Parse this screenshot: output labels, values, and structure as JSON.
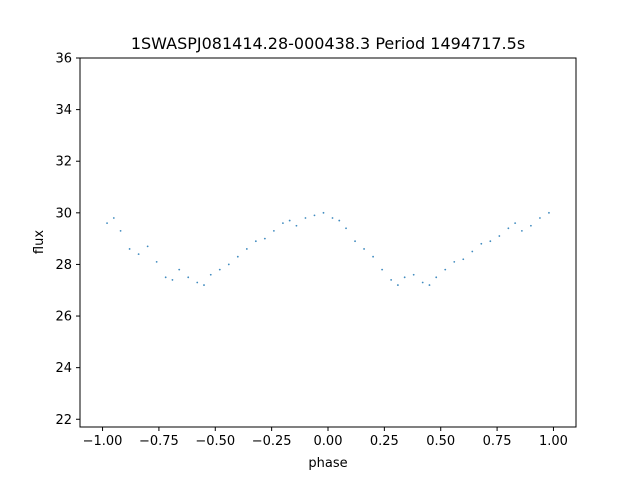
{
  "chart_data": {
    "type": "scatter",
    "title": "1SWASPJ081414.28-000438.3 Period 1494717.5s",
    "xlabel": "phase",
    "ylabel": "flux",
    "xlim": [
      -1.1,
      1.1
    ],
    "ylim": [
      21.7,
      36.0
    ],
    "x_ticks": [
      -1.0,
      -0.75,
      -0.5,
      -0.25,
      0.0,
      0.25,
      0.5,
      0.75,
      1.0
    ],
    "x_tick_labels": [
      "−1.00",
      "−0.75",
      "−0.50",
      "−0.25",
      "0.00",
      "0.25",
      "0.50",
      "0.75",
      "1.00"
    ],
    "y_ticks": [
      22,
      24,
      26,
      28,
      30,
      32,
      34,
      36
    ],
    "y_tick_labels": [
      "22",
      "24",
      "26",
      "28",
      "30",
      "32",
      "34",
      "36"
    ],
    "grid": false,
    "legend": "none",
    "point_color": "#1f77b4",
    "series": [
      {
        "x": [
          -0.98,
          -0.95,
          -0.92,
          -0.88,
          -0.84,
          -0.8,
          -0.76,
          -0.72,
          -0.69,
          -0.66,
          -0.62,
          -0.58,
          -0.55,
          -0.52,
          -0.48,
          -0.44,
          -0.4,
          -0.36,
          -0.32,
          -0.28,
          -0.24,
          -0.2,
          -0.17,
          -0.14,
          -0.1,
          -0.06,
          -0.02,
          0.02,
          0.05,
          0.08,
          0.12,
          0.16,
          0.2,
          0.24,
          0.28,
          0.31,
          0.34,
          0.38,
          0.42,
          0.45,
          0.48,
          0.52,
          0.56,
          0.6,
          0.64,
          0.68,
          0.72,
          0.76,
          0.8,
          0.83,
          0.86,
          0.9,
          0.94,
          0.98
        ],
        "y": [
          29.6,
          29.8,
          29.3,
          28.6,
          28.4,
          28.7,
          28.1,
          27.5,
          27.4,
          27.8,
          27.5,
          27.3,
          27.2,
          27.6,
          27.8,
          28.0,
          28.3,
          28.6,
          28.9,
          29.0,
          29.3,
          29.6,
          29.7,
          29.5,
          29.8,
          29.9,
          30.0,
          29.8,
          29.7,
          29.4,
          28.9,
          28.6,
          28.3,
          27.8,
          27.4,
          27.2,
          27.5,
          27.6,
          27.3,
          27.2,
          27.5,
          27.8,
          28.1,
          28.2,
          28.5,
          28.8,
          28.9,
          29.1,
          29.4,
          29.6,
          29.3,
          29.5,
          29.8,
          30.0
        ]
      }
    ]
  }
}
